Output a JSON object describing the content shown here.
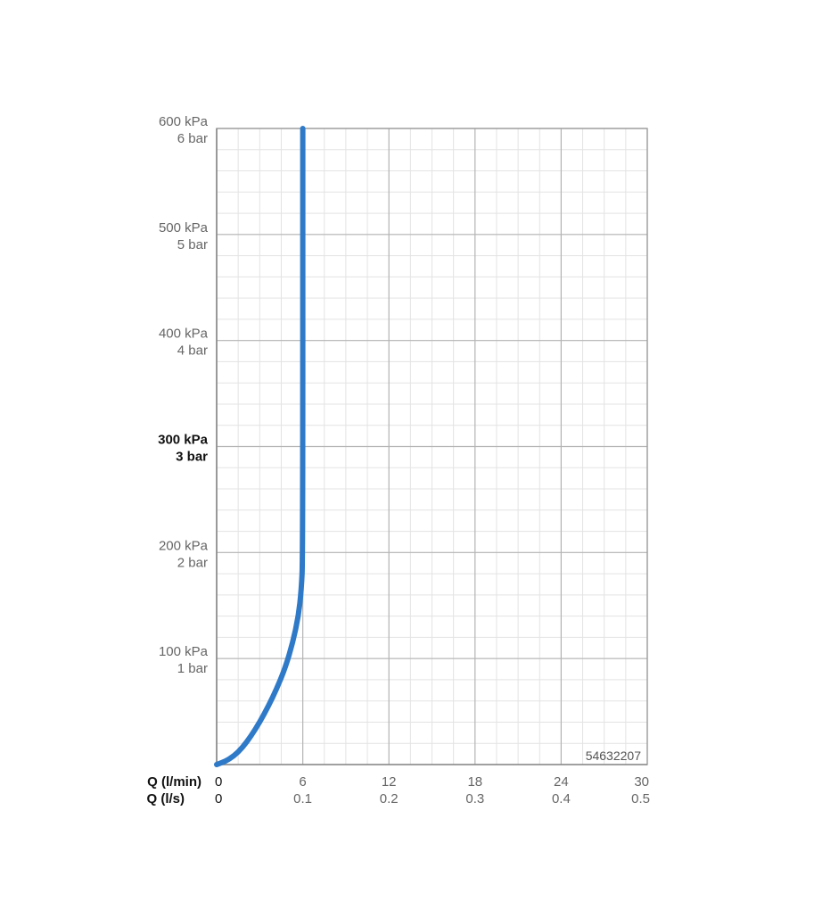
{
  "chart_data": {
    "type": "line",
    "title": "",
    "xlabel_primary": "Q (l/min)",
    "xlabel_secondary": "Q (l/s)",
    "ylabel": "",
    "xlim": [
      0,
      30
    ],
    "ylim": [
      0,
      600
    ],
    "x_ticks_primary": [
      {
        "value": 0,
        "label": "0"
      },
      {
        "value": 6,
        "label": "6"
      },
      {
        "value": 12,
        "label": "12"
      },
      {
        "value": 18,
        "label": "18"
      },
      {
        "value": 24,
        "label": "24"
      },
      {
        "value": 30,
        "label": "30"
      }
    ],
    "x_ticks_secondary": [
      {
        "value": 0,
        "label": "0"
      },
      {
        "value": 6,
        "label": "0.1"
      },
      {
        "value": 12,
        "label": "0.2"
      },
      {
        "value": 18,
        "label": "0.3"
      },
      {
        "value": 24,
        "label": "0.4"
      },
      {
        "value": 30,
        "label": "0.5"
      }
    ],
    "y_ticks": [
      {
        "value": 100,
        "label_kpa": "100 kPa",
        "label_bar": "1 bar",
        "bold": false
      },
      {
        "value": 200,
        "label_kpa": "200 kPa",
        "label_bar": "2 bar",
        "bold": false
      },
      {
        "value": 300,
        "label_kpa": "300 kPa",
        "label_bar": "3 bar",
        "bold": true
      },
      {
        "value": 400,
        "label_kpa": "400 kPa",
        "label_bar": "4 bar",
        "bold": false
      },
      {
        "value": 500,
        "label_kpa": "500 kPa",
        "label_bar": "5 bar",
        "bold": false
      },
      {
        "value": 600,
        "label_kpa": "600 kPa",
        "label_bar": "6 bar",
        "bold": false
      }
    ],
    "grid": true,
    "minor_grid_x_step": 1.5,
    "minor_grid_y_step": 20,
    "annotation": "54632207",
    "series": [
      {
        "color": "#2f7ac8",
        "points": [
          {
            "x": 0,
            "y": 0
          },
          {
            "x": 0.6,
            "y": 3
          },
          {
            "x": 1.2,
            "y": 8
          },
          {
            "x": 1.8,
            "y": 16
          },
          {
            "x": 2.4,
            "y": 27
          },
          {
            "x": 3.0,
            "y": 40
          },
          {
            "x": 3.6,
            "y": 55
          },
          {
            "x": 4.2,
            "y": 72
          },
          {
            "x": 4.8,
            "y": 92
          },
          {
            "x": 5.3,
            "y": 115
          },
          {
            "x": 5.7,
            "y": 140
          },
          {
            "x": 5.9,
            "y": 165
          },
          {
            "x": 6.0,
            "y": 195
          },
          {
            "x": 6.0,
            "y": 600
          }
        ]
      }
    ]
  }
}
